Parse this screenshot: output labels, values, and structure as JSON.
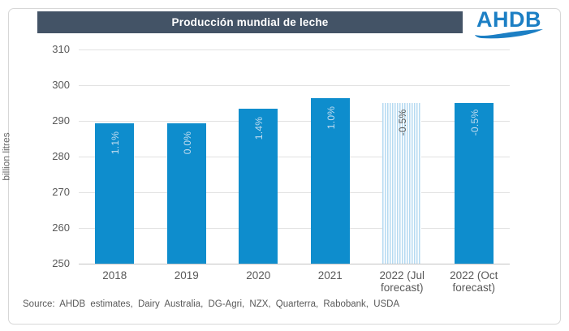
{
  "header": {
    "title": "Producción mundial de leche",
    "bg_color": "#435366",
    "text_color": "#ffffff"
  },
  "logo": {
    "text": "AHDB",
    "color": "#1c7fc4"
  },
  "chart_data": {
    "type": "bar",
    "title": "Producción mundial de leche",
    "xlabel": "",
    "ylabel": "billion litres",
    "ylim": [
      250,
      310
    ],
    "yticks": [
      250,
      260,
      270,
      280,
      290,
      300,
      310
    ],
    "grid": true,
    "legend": "none",
    "categories": [
      "2018",
      "2019",
      "2020",
      "2021",
      "2022 (Jul forecast)",
      "2022 (Oct forecast)"
    ],
    "values": [
      289.4,
      289.4,
      293.4,
      296.4,
      294.9,
      294.9
    ],
    "bar_labels": [
      "1.1%",
      "0.0%",
      "1.4%",
      "1.0%",
      "-0.5%",
      "-0.5%"
    ],
    "bar_styles": [
      "solid",
      "solid",
      "solid",
      "solid",
      "striped",
      "solid"
    ],
    "bar_color": "#0e8dcd",
    "striped_bar_color": "#b5daf1",
    "label_color_solid": "#c3ddf0",
    "label_color_striped": "#595959"
  },
  "source": {
    "text": "Source: AHDB estimates, Dairy Australia, DG-Agri, NZX, Quarterra, Rabobank, USDA"
  }
}
